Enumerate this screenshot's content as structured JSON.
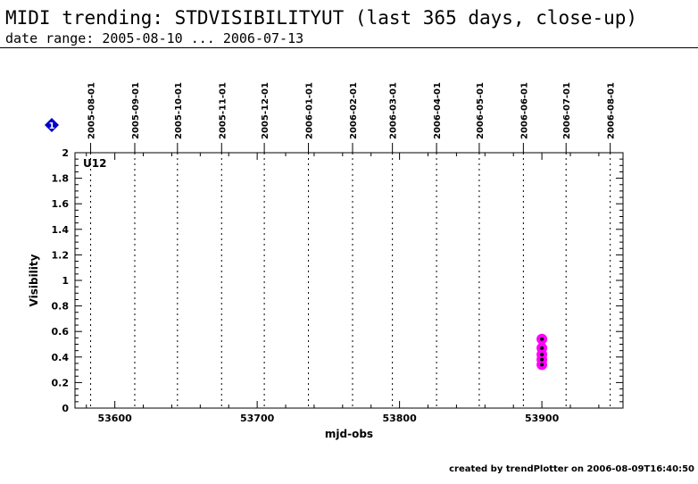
{
  "header": {
    "title": "MIDI trending: STDVISIBILITYUT (last 365 days, close-up)",
    "subtitle": "date range: 2005-08-10 ... 2006-07-13"
  },
  "footer": {
    "text": "created by trendPlotter on 2006-08-09T16:40:50"
  },
  "marker": {
    "label": "1",
    "color": "#0000cc"
  },
  "chart_data": {
    "type": "scatter",
    "panel_label": "U12",
    "xlabel": "mjd-obs",
    "ylabel": "Visibility",
    "xlim": [
      53572,
      53957
    ],
    "ylim": [
      0,
      2
    ],
    "x_ticks": [
      53600,
      53700,
      53800,
      53900
    ],
    "y_ticks": [
      0,
      0.2,
      0.4,
      0.6,
      0.8,
      1,
      1.2,
      1.4,
      1.6,
      1.8,
      2
    ],
    "y_tick_labels": [
      "0",
      "0.2",
      "0.4",
      "0.6",
      "0.8",
      "1",
      "1.2",
      "1.4",
      "1.6",
      "1.8",
      "2"
    ],
    "month_markers": [
      {
        "date": "2005-08-01",
        "mjd": 53583
      },
      {
        "date": "2005-09-01",
        "mjd": 53614
      },
      {
        "date": "2005-10-01",
        "mjd": 53644
      },
      {
        "date": "2005-11-01",
        "mjd": 53675
      },
      {
        "date": "2005-12-01",
        "mjd": 53705
      },
      {
        "date": "2006-01-01",
        "mjd": 53736
      },
      {
        "date": "2006-02-01",
        "mjd": 53767
      },
      {
        "date": "2006-03-01",
        "mjd": 53795
      },
      {
        "date": "2006-04-01",
        "mjd": 53826
      },
      {
        "date": "2006-05-01",
        "mjd": 53856
      },
      {
        "date": "2006-06-01",
        "mjd": 53887
      },
      {
        "date": "2006-07-01",
        "mjd": 53917
      },
      {
        "date": "2006-08-01",
        "mjd": 53948
      }
    ],
    "points": [
      {
        "x": 53900,
        "y": 0.54
      },
      {
        "x": 53900,
        "y": 0.47
      },
      {
        "x": 53900,
        "y": 0.42
      },
      {
        "x": 53900,
        "y": 0.38
      },
      {
        "x": 53900,
        "y": 0.34
      }
    ],
    "point_color": "#ff00ff",
    "point_center_color": "#000000",
    "grid": "dotted vertical month lines"
  }
}
